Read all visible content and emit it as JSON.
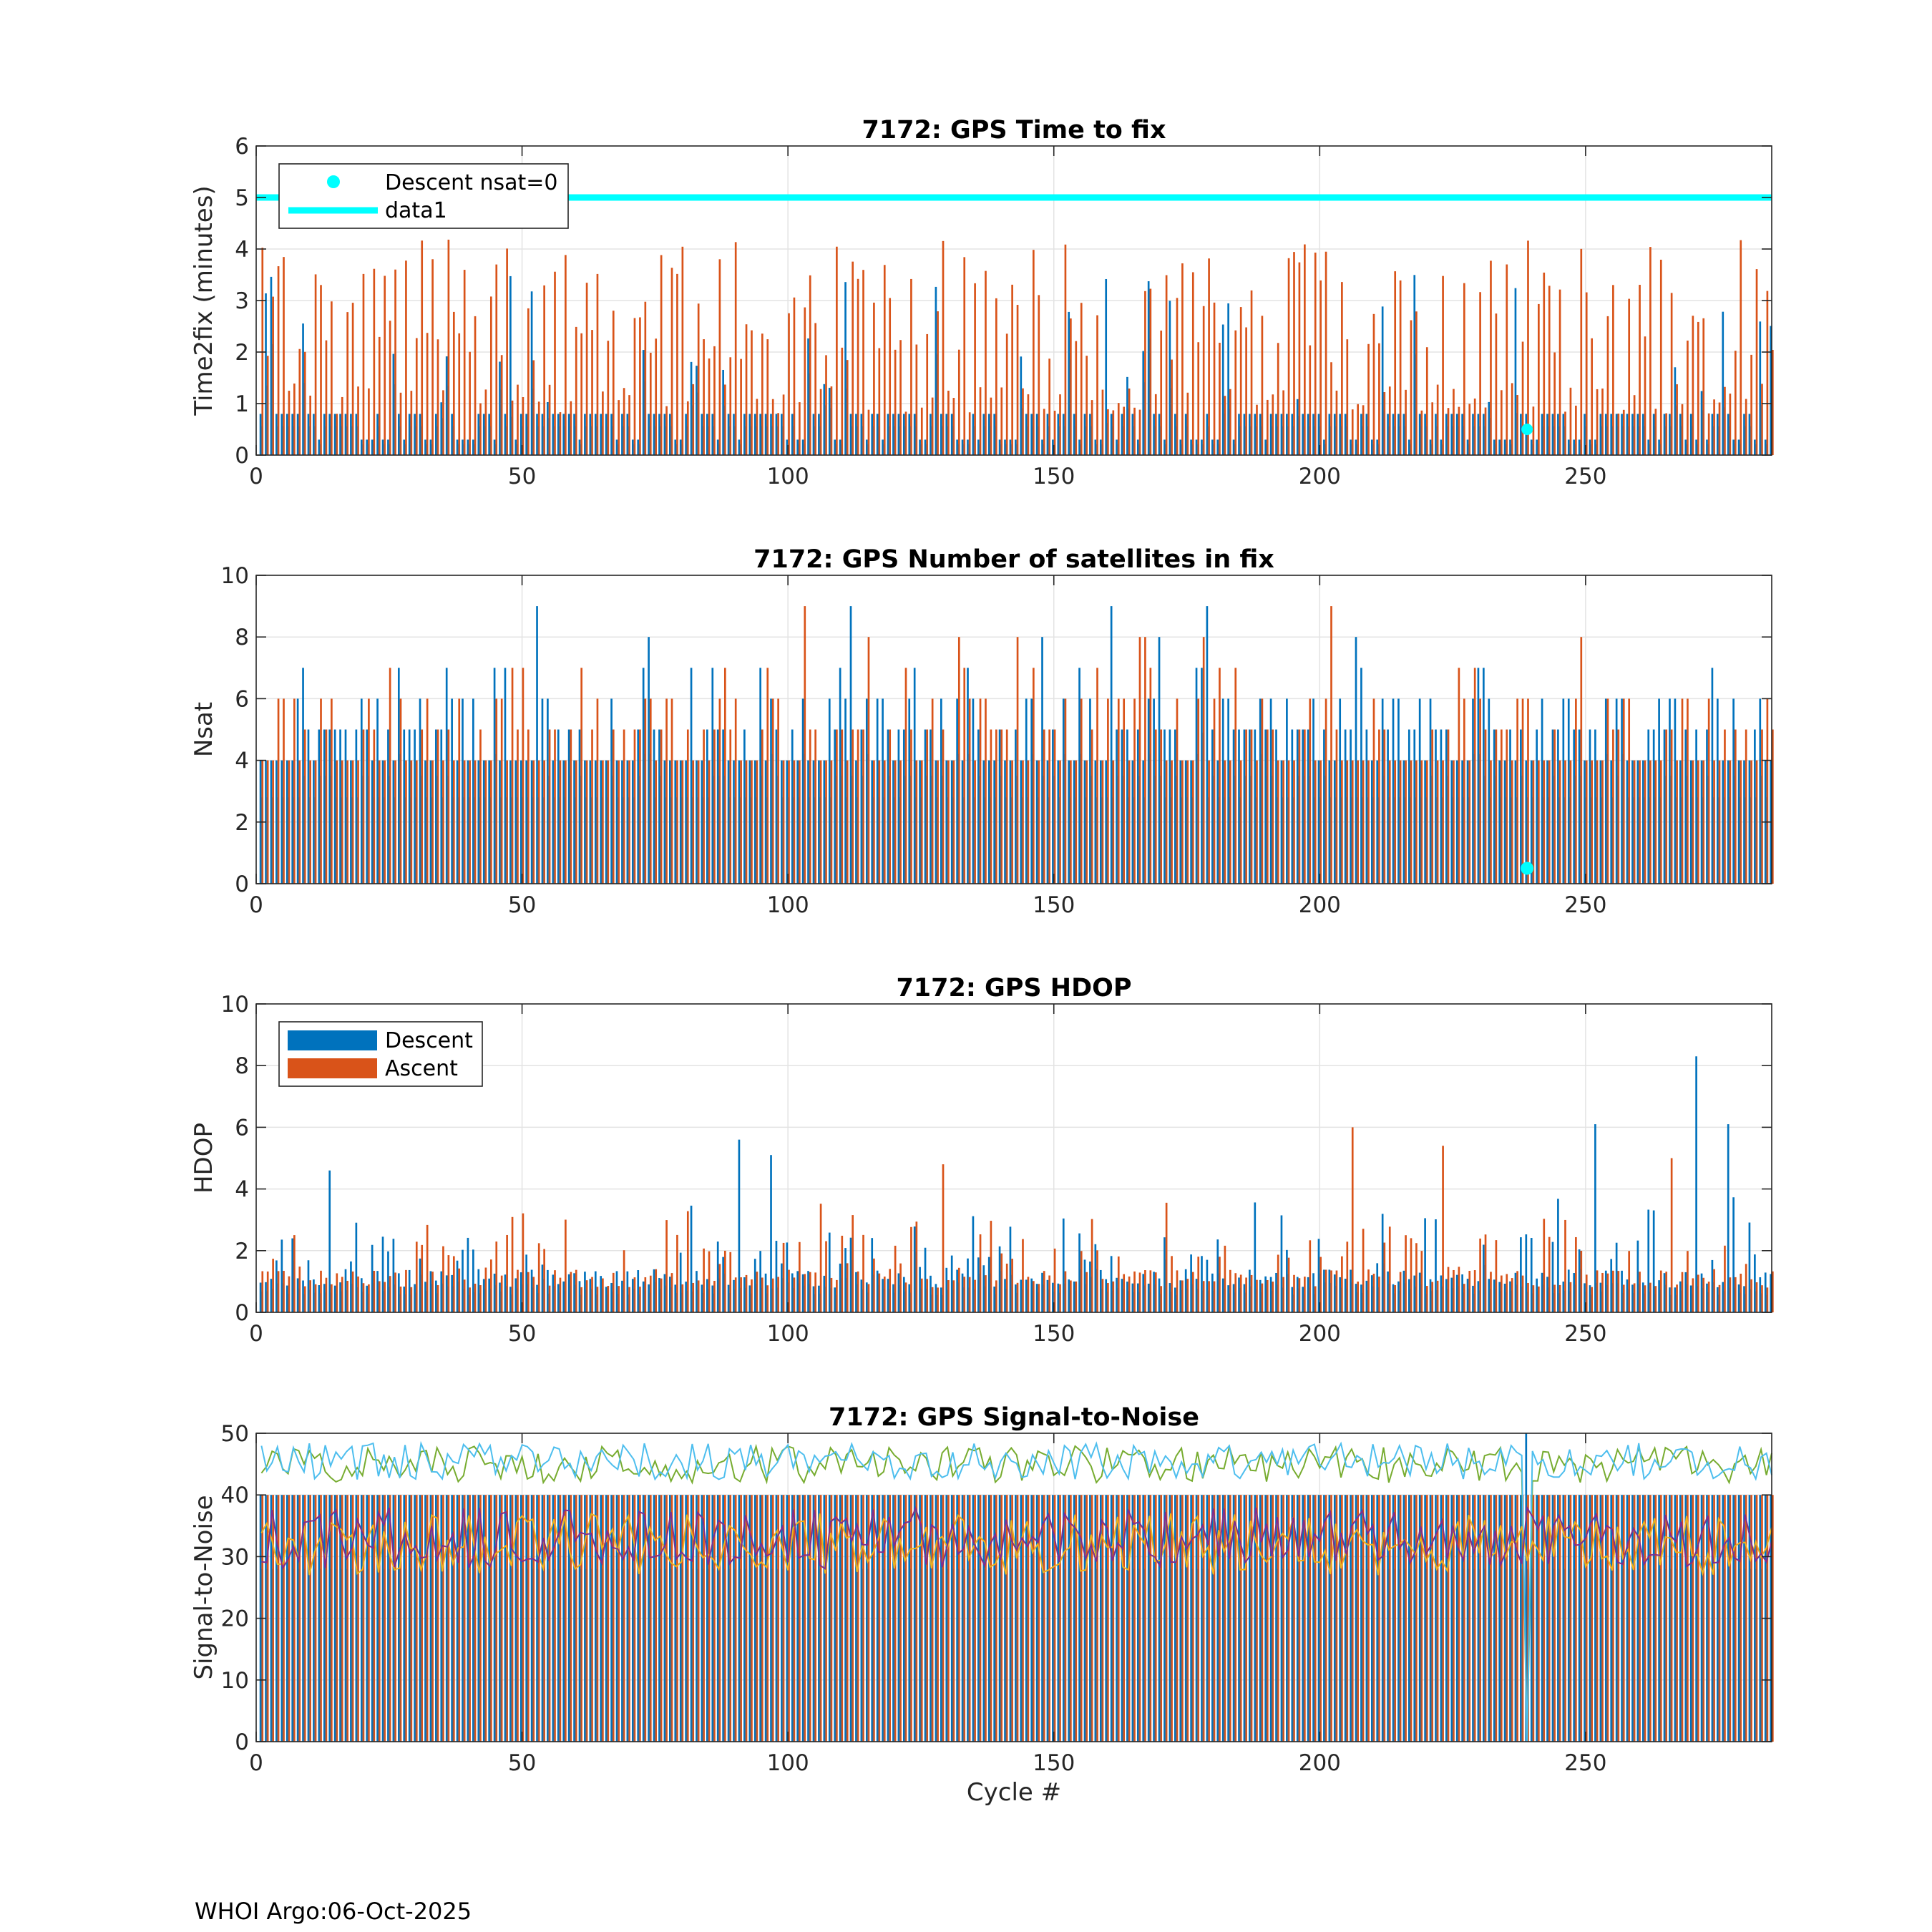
{
  "footer": "WHOI Argo:06-Oct-2025",
  "colors": {
    "descent": "#0072BD",
    "ascent": "#D95319",
    "cyan": "#00FFFF",
    "snr_lines": [
      "#0072BD",
      "#D95319",
      "#EDB120",
      "#7E2F8E",
      "#77AC30",
      "#4DBEEE"
    ]
  },
  "chart_data": [
    {
      "type": "bar",
      "title": "7172: GPS Time to fix",
      "xlabel": "",
      "ylabel": "Time2fix (minutes)",
      "xlim": [
        0,
        285
      ],
      "ylim": [
        0,
        6
      ],
      "xticks": [
        0,
        50,
        100,
        150,
        200,
        250
      ],
      "yticks": [
        0,
        1,
        2,
        3,
        4,
        5,
        6
      ],
      "grid": true,
      "legend": {
        "location": "top-left",
        "entries": [
          "Descent nsat=0",
          "data1"
        ]
      },
      "series": [
        {
          "name": "Descent",
          "values": "generated-per-cycle",
          "typical": 0.8,
          "range": [
            0.3,
            4.3
          ]
        },
        {
          "name": "Ascent",
          "values": "generated-per-cycle",
          "typical": 2.6,
          "range": [
            0.8,
            5.8
          ]
        }
      ],
      "reference_line": {
        "name": "data1",
        "y": 5
      },
      "marker": {
        "name": "Descent nsat=0",
        "x": 239,
        "y": 0.5
      }
    },
    {
      "type": "bar",
      "title": "7172: GPS Number of satellites in fix",
      "xlabel": "",
      "ylabel": "Nsat",
      "xlim": [
        0,
        285
      ],
      "ylim": [
        0,
        10
      ],
      "xticks": [
        0,
        50,
        100,
        150,
        200,
        250
      ],
      "yticks": [
        0,
        2,
        4,
        6,
        8,
        10
      ],
      "grid": true,
      "series": [
        {
          "name": "Descent",
          "values": "generated-per-cycle",
          "typical": 5,
          "range": [
            3,
            10
          ]
        },
        {
          "name": "Ascent",
          "values": "generated-per-cycle",
          "typical": 5,
          "range": [
            3,
            10
          ]
        }
      ],
      "marker": {
        "name": "Descent nsat=0",
        "x": 239,
        "y": 0.5
      }
    },
    {
      "type": "bar",
      "title": "7172: GPS HDOP",
      "xlabel": "",
      "ylabel": "HDOP",
      "xlim": [
        0,
        285
      ],
      "ylim": [
        0,
        10
      ],
      "xticks": [
        0,
        50,
        100,
        150,
        200,
        250
      ],
      "yticks": [
        0,
        2,
        4,
        6,
        8,
        10
      ],
      "grid": true,
      "legend": {
        "location": "top-left",
        "entries": [
          "Descent",
          "Ascent"
        ]
      },
      "series": [
        {
          "name": "Descent",
          "values": "generated-per-cycle",
          "typical": 1.1,
          "range": [
            0.8,
            8.3
          ]
        },
        {
          "name": "Ascent",
          "values": "generated-per-cycle",
          "typical": 1.2,
          "range": [
            0.8,
            6.0
          ]
        }
      ],
      "spikes": [
        {
          "x": 14,
          "series": "Descent",
          "y": 4.6
        },
        {
          "x": 91,
          "series": "Descent",
          "y": 5.6
        },
        {
          "x": 97,
          "series": "Descent",
          "y": 5.1
        },
        {
          "x": 129,
          "series": "Ascent",
          "y": 4.8
        },
        {
          "x": 206,
          "series": "Ascent",
          "y": 6.0
        },
        {
          "x": 223,
          "series": "Ascent",
          "y": 5.4
        },
        {
          "x": 252,
          "series": "Descent",
          "y": 6.1
        },
        {
          "x": 266,
          "series": "Ascent",
          "y": 5.0
        },
        {
          "x": 271,
          "series": "Descent",
          "y": 8.3
        },
        {
          "x": 277,
          "series": "Descent",
          "y": 6.1
        }
      ]
    },
    {
      "type": "line",
      "title": "7172: GPS Signal-to-Noise",
      "xlabel": "Cycle #",
      "ylabel": "Signal-to-Noise",
      "xlim": [
        0,
        285
      ],
      "ylim": [
        0,
        50
      ],
      "xticks": [
        0,
        50,
        100,
        150,
        200,
        250
      ],
      "yticks": [
        0,
        10,
        20,
        30,
        40,
        50
      ],
      "grid": true,
      "bars": [
        {
          "name": "Descent",
          "typical": 40
        },
        {
          "name": "Ascent",
          "typical": 40
        }
      ],
      "series": [
        {
          "name": "snr-1",
          "mean": 45,
          "spread": 3
        },
        {
          "name": "snr-2",
          "mean": 45.5,
          "spread": 3
        },
        {
          "name": "snr-3",
          "mean": 32,
          "spread": 5
        },
        {
          "name": "snr-4",
          "mean": 33,
          "spread": 5
        }
      ],
      "dropout": {
        "x": 239,
        "y": 0
      }
    }
  ]
}
